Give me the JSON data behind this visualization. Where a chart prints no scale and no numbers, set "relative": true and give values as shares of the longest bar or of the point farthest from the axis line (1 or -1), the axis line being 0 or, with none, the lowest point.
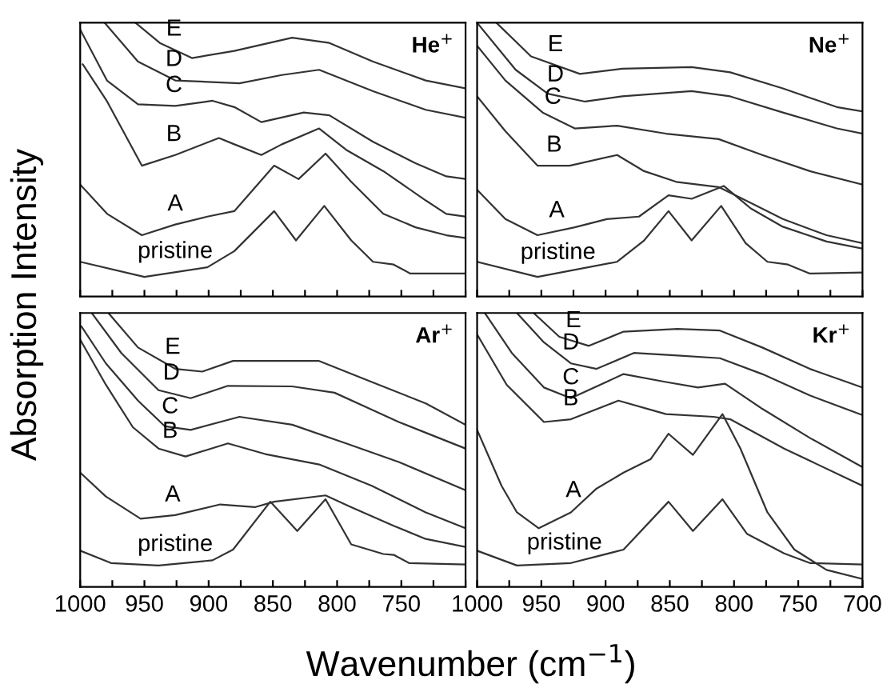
{
  "chart_data": [
    {
      "type": "line",
      "title": "He$^{+}$",
      "ylabel": "Absorption Intensity",
      "relative": true,
      "grid": false,
      "legend": false,
      "tick_labels": false,
      "marker": "none",
      "line_style": "solid",
      "xlim": [
        1000,
        700
      ],
      "xticks": [
        {
          "value": 1000,
          "label": null
        },
        {
          "value": 975,
          "label": null
        },
        {
          "value": 950,
          "label": null
        },
        {
          "value": 925,
          "label": null
        },
        {
          "value": 900,
          "label": null
        },
        {
          "value": 875,
          "label": null
        },
        {
          "value": 850,
          "label": null
        },
        {
          "value": 825,
          "label": null
        },
        {
          "value": 800,
          "label": null
        },
        {
          "value": 775,
          "label": null
        },
        {
          "value": 750,
          "label": null
        },
        {
          "value": 725,
          "label": null
        },
        {
          "value": 700,
          "label": null
        }
      ],
      "series": [
        {
          "color": "#333333",
          "x": [
            1000,
            950,
            901,
            880,
            849,
            832,
            810,
            789,
            772,
            756,
            743,
            700
          ],
          "values": [
            0.127,
            0.072,
            0.107,
            0.166,
            0.312,
            0.205,
            0.331,
            0.205,
            0.127,
            0.117,
            0.084,
            0.084
          ]
        },
        {
          "color": "#333333",
          "x": [
            1000,
            979,
            952,
            926,
            901,
            880,
            849,
            830,
            809,
            789,
            764,
            739,
            715,
            700
          ],
          "values": [
            0.409,
            0.302,
            0.224,
            0.263,
            0.292,
            0.312,
            0.478,
            0.429,
            0.522,
            0.419,
            0.302,
            0.253,
            0.224,
            0.214
          ]
        },
        {
          "color": "#333333",
          "x": [
            998,
            979,
            952,
            926,
            892,
            880,
            859,
            843,
            814,
            793,
            764,
            731,
            715,
            700
          ],
          "values": [
            0.848,
            0.712,
            0.478,
            0.517,
            0.579,
            0.556,
            0.517,
            0.556,
            0.614,
            0.536,
            0.458,
            0.351,
            0.302,
            0.292
          ]
        },
        {
          "color": "#333333",
          "x": [
            1000,
            979,
            955,
            926,
            897,
            880,
            859,
            826,
            806,
            772,
            739,
            715,
            700
          ],
          "values": [
            0.975,
            0.788,
            0.702,
            0.696,
            0.715,
            0.692,
            0.637,
            0.672,
            0.662,
            0.565,
            0.487,
            0.439,
            0.429
          ]
        },
        {
          "color": "#333333",
          "x": [
            981,
            955,
            926,
            876,
            843,
            814,
            772,
            731,
            700
          ],
          "values": [
            1.0,
            0.858,
            0.789,
            0.779,
            0.809,
            0.828,
            0.75,
            0.682,
            0.653
          ]
        },
        {
          "color": "#333333",
          "x": [
            957,
            938,
            913,
            880,
            835,
            806,
            772,
            731,
            700
          ],
          "values": [
            1.0,
            0.926,
            0.871,
            0.897,
            0.945,
            0.926,
            0.858,
            0.789,
            0.76
          ]
        }
      ],
      "annotations": [
        {
          "text": "pristine",
          "x": 926,
          "y": 0.09
        },
        {
          "text": "A",
          "x": 926,
          "y": 0.263
        },
        {
          "text": "B",
          "x": 927,
          "y": 0.517
        },
        {
          "text": "C",
          "x": 927,
          "y": 0.696
        },
        {
          "text": "D",
          "x": 927,
          "y": 0.791
        },
        {
          "text": "E",
          "x": 927,
          "y": 0.902
        }
      ]
    },
    {
      "type": "line",
      "title": "Ne$^{+}$",
      "relative": true,
      "grid": false,
      "legend": false,
      "tick_labels": false,
      "marker": "none",
      "line_style": "solid",
      "xlim": [
        1000,
        700
      ],
      "xticks": [
        {
          "value": 1000,
          "label": null
        },
        {
          "value": 975,
          "label": null
        },
        {
          "value": 950,
          "label": null
        },
        {
          "value": 925,
          "label": null
        },
        {
          "value": 900,
          "label": null
        },
        {
          "value": 875,
          "label": null
        },
        {
          "value": 850,
          "label": null
        },
        {
          "value": 825,
          "label": null
        },
        {
          "value": 800,
          "label": null
        },
        {
          "value": 775,
          "label": null
        },
        {
          "value": 750,
          "label": null
        },
        {
          "value": 725,
          "label": null
        },
        {
          "value": 700,
          "label": null
        }
      ],
      "series": [
        {
          "color": "#333333",
          "x": [
            1000,
            953,
            891,
            870,
            851,
            833,
            810,
            791,
            774,
            758,
            741,
            700
          ],
          "values": [
            0.127,
            0.072,
            0.127,
            0.205,
            0.312,
            0.205,
            0.331,
            0.195,
            0.127,
            0.117,
            0.084,
            0.088
          ]
        },
        {
          "color": "#333333",
          "x": [
            1000,
            978,
            953,
            924,
            899,
            874,
            851,
            833,
            808,
            787,
            762,
            728,
            700
          ],
          "values": [
            0.39,
            0.283,
            0.224,
            0.253,
            0.283,
            0.292,
            0.37,
            0.357,
            0.404,
            0.322,
            0.255,
            0.201,
            0.175
          ]
        },
        {
          "color": "#333333",
          "x": [
            1000,
            978,
            953,
            928,
            891,
            870,
            845,
            812,
            795,
            762,
            728,
            700
          ],
          "values": [
            0.731,
            0.604,
            0.478,
            0.478,
            0.517,
            0.458,
            0.419,
            0.4,
            0.361,
            0.283,
            0.224,
            0.195
          ]
        },
        {
          "color": "#333333",
          "x": [
            1000,
            978,
            949,
            924,
            891,
            853,
            812,
            778,
            741,
            700
          ],
          "values": [
            0.916,
            0.789,
            0.672,
            0.614,
            0.624,
            0.595,
            0.575,
            0.517,
            0.458,
            0.409
          ]
        },
        {
          "color": "#333333",
          "x": [
            999,
            970,
            945,
            916,
            887,
            833,
            803,
            762,
            720,
            700
          ],
          "values": [
            0.994,
            0.828,
            0.741,
            0.712,
            0.731,
            0.75,
            0.731,
            0.672,
            0.614,
            0.595
          ]
        },
        {
          "color": "#333333",
          "x": [
            985,
            958,
            920,
            887,
            833,
            803,
            762,
            720,
            700
          ],
          "values": [
            1.0,
            0.877,
            0.813,
            0.832,
            0.838,
            0.819,
            0.76,
            0.692,
            0.676
          ]
        }
      ],
      "annotations": [
        {
          "text": "pristine",
          "x": 937,
          "y": 0.086
        },
        {
          "text": "A",
          "x": 938,
          "y": 0.239
        },
        {
          "text": "B",
          "x": 940,
          "y": 0.478
        },
        {
          "text": "C",
          "x": 941,
          "y": 0.653
        },
        {
          "text": "D",
          "x": 939,
          "y": 0.735
        },
        {
          "text": "E",
          "x": 939,
          "y": 0.845
        }
      ]
    },
    {
      "type": "line",
      "title": "Ar$^{+}$",
      "relative": true,
      "grid": false,
      "legend": false,
      "tick_labels": "x",
      "marker": "none",
      "line_style": "solid",
      "xlim": [
        1000,
        700
      ],
      "xticks": [
        1000,
        {
          "value": 975,
          "label": null
        },
        950,
        {
          "value": 925,
          "label": null
        },
        900,
        {
          "value": 875,
          "label": null
        },
        850,
        {
          "value": 825,
          "label": null
        },
        800,
        {
          "value": 775,
          "label": null
        },
        750,
        {
          "value": 725,
          "label": null
        },
        {
          "value": 700,
          "label": null
        }
      ],
      "series": [
        {
          "color": "#333333",
          "x": [
            1000,
            976,
            939,
            897,
            881,
            852,
            831,
            809,
            789,
            764,
            756,
            744,
            700
          ],
          "values": [
            0.132,
            0.087,
            0.078,
            0.097,
            0.136,
            0.311,
            0.204,
            0.32,
            0.155,
            0.12,
            0.117,
            0.087,
            0.082
          ]
        },
        {
          "color": "#333333",
          "x": [
            1000,
            980,
            953,
            926,
            891,
            864,
            849,
            809,
            789,
            756,
            731,
            700
          ],
          "values": [
            0.417,
            0.33,
            0.249,
            0.262,
            0.301,
            0.291,
            0.311,
            0.334,
            0.291,
            0.223,
            0.175,
            0.146
          ]
        },
        {
          "color": "#333333",
          "x": [
            1000,
            980,
            959,
            939,
            918,
            885,
            856,
            814,
            773,
            731,
            700
          ],
          "values": [
            0.903,
            0.738,
            0.583,
            0.505,
            0.476,
            0.524,
            0.485,
            0.447,
            0.369,
            0.272,
            0.214
          ]
        },
        {
          "color": "#333333",
          "x": [
            999,
            980,
            955,
            934,
            914,
            876,
            835,
            793,
            752,
            700
          ],
          "values": [
            0.951,
            0.816,
            0.68,
            0.586,
            0.573,
            0.621,
            0.592,
            0.524,
            0.456,
            0.353
          ]
        },
        {
          "color": "#333333",
          "x": [
            991,
            968,
            939,
            914,
            885,
            835,
            802,
            752,
            700
          ],
          "values": [
            1.0,
            0.854,
            0.718,
            0.689,
            0.734,
            0.732,
            0.709,
            0.602,
            0.505
          ]
        },
        {
          "color": "#333333",
          "x": [
            978,
            955,
            926,
            905,
            881,
            814,
            773,
            731,
            700
          ],
          "values": [
            1.0,
            0.874,
            0.796,
            0.786,
            0.825,
            0.825,
            0.748,
            0.67,
            0.592
          ]
        }
      ],
      "annotations": [
        {
          "text": "pristine",
          "x": 926,
          "y": 0.08
        },
        {
          "text": "A",
          "x": 928,
          "y": 0.261
        },
        {
          "text": "B",
          "x": 930,
          "y": 0.493
        },
        {
          "text": "C",
          "x": 930,
          "y": 0.583
        },
        {
          "text": "D",
          "x": 929,
          "y": 0.706
        },
        {
          "text": "E",
          "x": 928,
          "y": 0.8
        }
      ]
    },
    {
      "type": "line",
      "title": "Kr$^{+}$",
      "xlabel": "Wavenumber (cm$^{−1}$)",
      "relative": true,
      "grid": false,
      "legend": false,
      "tick_labels": "x",
      "marker": "none",
      "line_style": "solid",
      "xlim": [
        1000,
        700
      ],
      "xticks": [
        1000,
        {
          "value": 975,
          "label": null
        },
        950,
        {
          "value": 925,
          "label": null
        },
        900,
        {
          "value": 875,
          "label": null
        },
        850,
        {
          "value": 825,
          "label": null
        },
        800,
        {
          "value": 775,
          "label": null
        },
        750,
        {
          "value": 725,
          "label": null
        },
        700
      ],
      "series": [
        {
          "color": "#333333",
          "x": [
            1000,
            969,
            927,
            886,
            851,
            832,
            809,
            790,
            761,
            741,
            700
          ],
          "values": [
            0.132,
            0.078,
            0.087,
            0.136,
            0.311,
            0.204,
            0.32,
            0.194,
            0.122,
            0.087,
            0.082
          ]
        },
        {
          "color": "#333333",
          "x": [
            1000,
            981,
            969,
            952,
            927,
            907,
            886,
            865,
            851,
            832,
            809,
            795,
            774,
            753,
            728,
            700
          ],
          "values": [
            0.573,
            0.369,
            0.272,
            0.214,
            0.272,
            0.359,
            0.417,
            0.466,
            0.559,
            0.482,
            0.631,
            0.505,
            0.272,
            0.136,
            0.062,
            0.029
          ]
        },
        {
          "color": "#333333",
          "x": [
            1000,
            977,
            948,
            927,
            890,
            853,
            816,
            803,
            761,
            700
          ],
          "values": [
            0.922,
            0.738,
            0.602,
            0.612,
            0.68,
            0.631,
            0.621,
            0.612,
            0.505,
            0.369
          ]
        },
        {
          "color": "#333333",
          "x": [
            994,
            973,
            948,
            927,
            886,
            853,
            828,
            807,
            778,
            741,
            700
          ],
          "values": [
            1.0,
            0.854,
            0.728,
            0.689,
            0.777,
            0.748,
            0.728,
            0.742,
            0.65,
            0.544,
            0.437
          ]
        },
        {
          "color": "#333333",
          "x": [
            969,
            948,
            927,
            907,
            878,
            844,
            811,
            778,
            741,
            700
          ],
          "values": [
            1.0,
            0.893,
            0.816,
            0.796,
            0.854,
            0.845,
            0.835,
            0.777,
            0.699,
            0.627
          ]
        },
        {
          "color": "#333333",
          "x": [
            956,
            936,
            913,
            886,
            844,
            811,
            778,
            741,
            700
          ],
          "values": [
            1.0,
            0.913,
            0.88,
            0.932,
            0.942,
            0.936,
            0.874,
            0.796,
            0.728
          ]
        }
      ],
      "annotations": [
        {
          "text": "pristine",
          "x": 932,
          "y": 0.086
        },
        {
          "text": "A",
          "x": 925,
          "y": 0.277
        },
        {
          "text": "B",
          "x": 927,
          "y": 0.612
        },
        {
          "text": "C",
          "x": 927,
          "y": 0.689
        },
        {
          "text": "D",
          "x": 927,
          "y": 0.816
        },
        {
          "text": "E",
          "x": 925,
          "y": 0.897
        }
      ]
    }
  ]
}
